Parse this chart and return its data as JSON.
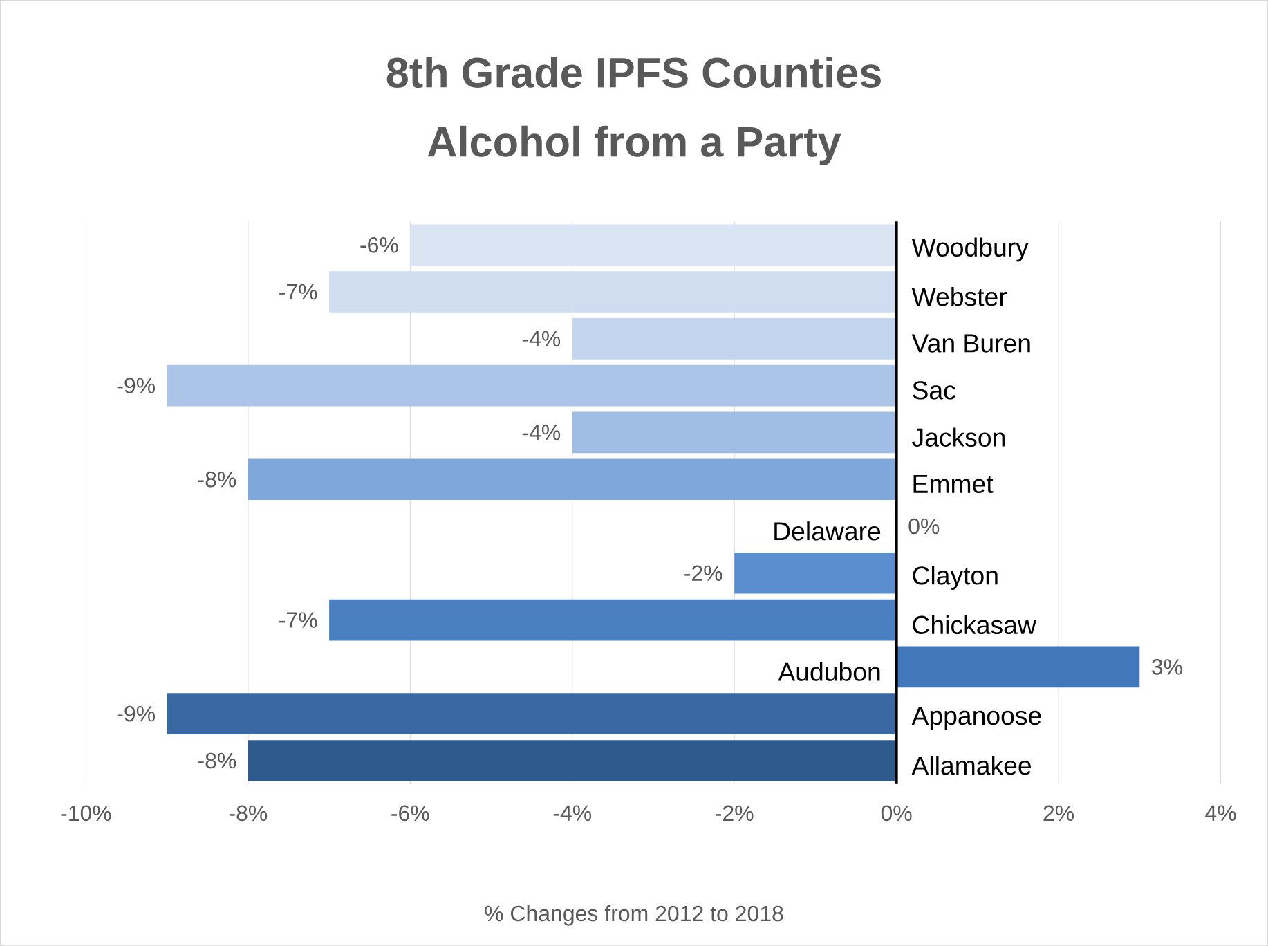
{
  "chart_data": {
    "type": "bar",
    "orientation": "horizontal",
    "title": "8th Grade IPFS Counties",
    "subtitle": "Alcohol from a Party",
    "xlabel": "% Changes from 2012 to 2018",
    "categories": [
      "Woodbury",
      "Webster",
      "Van Buren",
      "Sac",
      "Jackson",
      "Emmet",
      "Delaware",
      "Clayton",
      "Chickasaw",
      "Audubon",
      "Appanoose",
      "Allamakee"
    ],
    "values": [
      -6,
      -7,
      -4,
      -9,
      -4,
      -8,
      0,
      -2,
      -7,
      3,
      -9,
      -8
    ],
    "value_labels": [
      "-6%",
      "-7%",
      "-4%",
      "-9%",
      "-4%",
      "-8%",
      "0%",
      "-2%",
      "-7%",
      "3%",
      "-9%",
      "-8%"
    ],
    "colors": [
      "#dae4f3",
      "#d0ddf1",
      "#c2d4ee",
      "#abc5e9",
      "#9fbde5",
      "#7ea7db",
      "#6a99d4",
      "#5a8ece",
      "#4a7fc0",
      "#4277bb",
      "#3a68a3",
      "#2f5a8d"
    ],
    "xlim": [
      -10,
      4
    ],
    "xticks": [
      {
        "value": -10,
        "label": "-10%"
      },
      {
        "value": -8,
        "label": "-8%"
      },
      {
        "value": -6,
        "label": "-6%"
      },
      {
        "value": -4,
        "label": "-4%"
      },
      {
        "value": -2,
        "label": "-2%"
      },
      {
        "value": 0,
        "label": "0%"
      },
      {
        "value": 2,
        "label": "2%"
      },
      {
        "value": 4,
        "label": "4%"
      }
    ],
    "grid": "x"
  }
}
